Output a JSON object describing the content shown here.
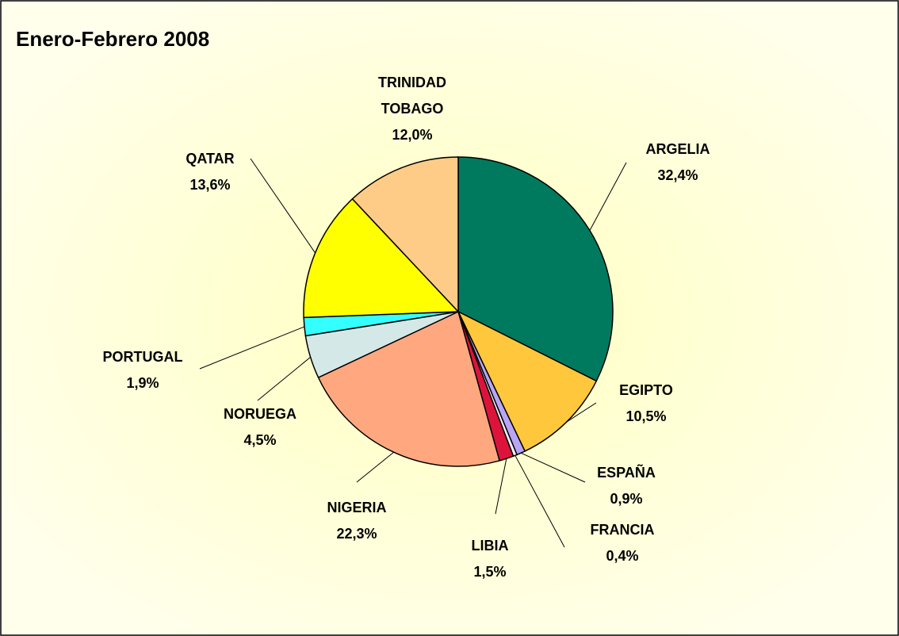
{
  "chart_data": {
    "type": "pie",
    "title": "Enero-Febrero 2008",
    "categories": [
      "ARGELIA",
      "EGIPTO",
      "ESPAÑA",
      "FRANCIA",
      "LIBIA",
      "NIGERIA",
      "NORUEGA",
      "PORTUGAL",
      "QATAR",
      "TRINIDAD TOBAGO"
    ],
    "values": [
      32.4,
      10.5,
      0.9,
      0.4,
      1.5,
      22.3,
      4.5,
      1.9,
      13.6,
      12.0
    ],
    "value_labels": [
      "32,4%",
      "10,5%",
      "0,9%",
      "0,4%",
      "1,5%",
      "22,3%",
      "4,5%",
      "1,9%",
      "13,6%",
      "12,0%"
    ],
    "colors": [
      "#007A5E",
      "#FFC83C",
      "#B9A5F5",
      "#F4F0FF",
      "#DC143C",
      "#FFA880",
      "#D5E8E8",
      "#33FFFF",
      "#FFFF00",
      "#FFCC88"
    ]
  }
}
